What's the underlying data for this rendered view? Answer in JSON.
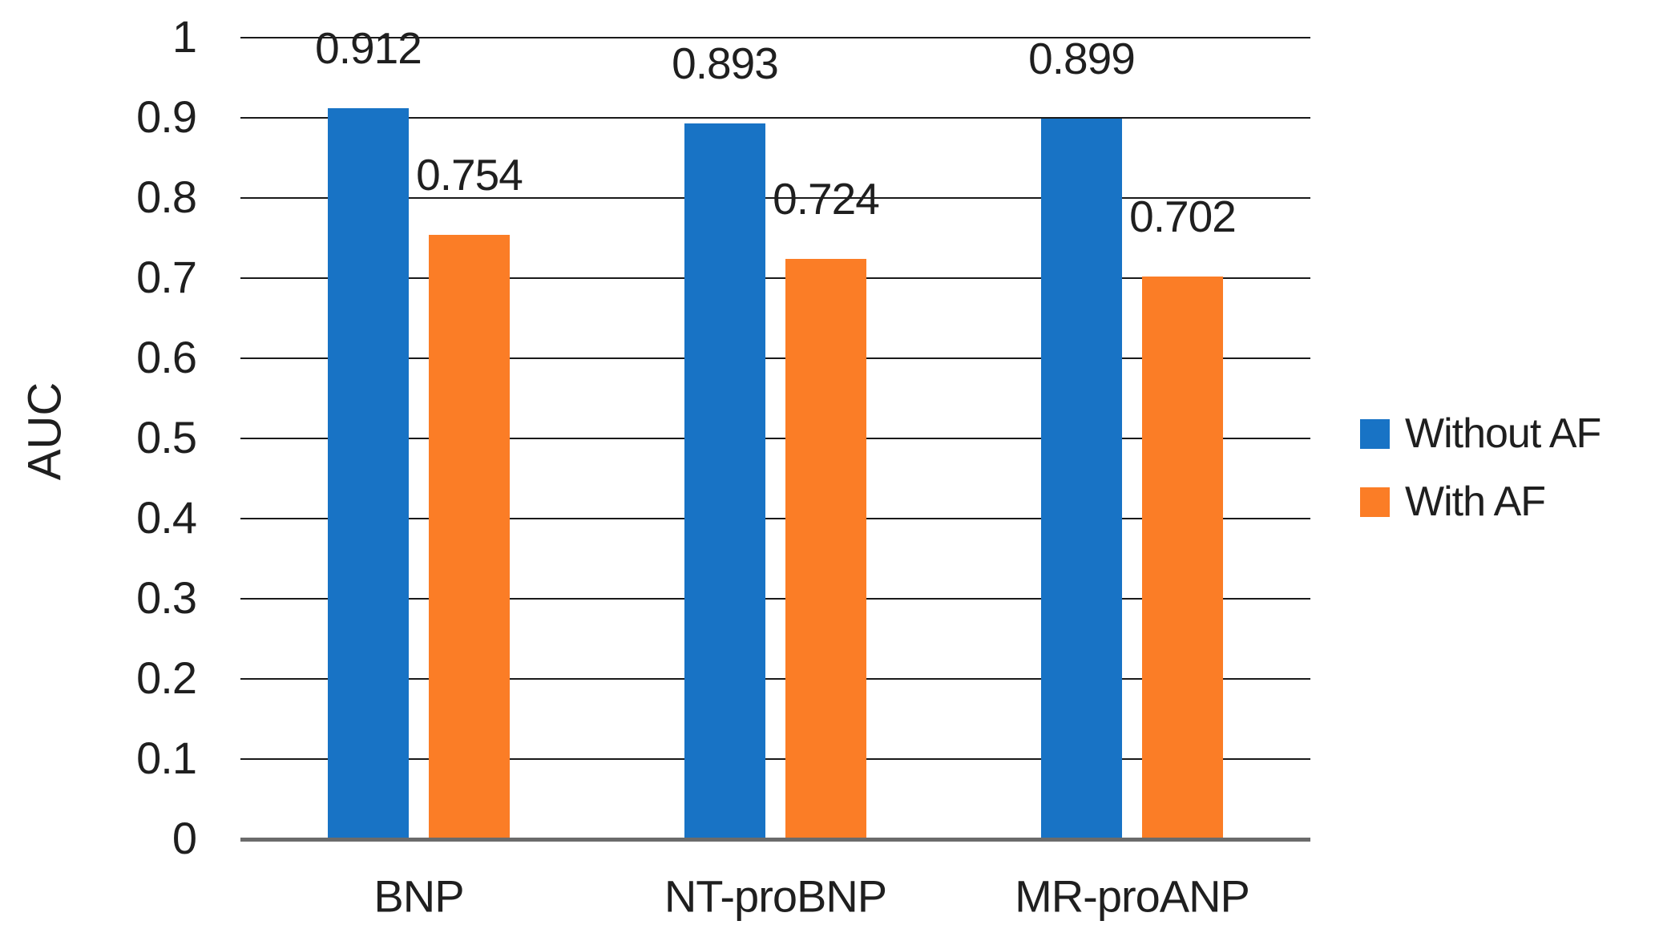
{
  "chart_data": {
    "type": "bar",
    "title": "",
    "categories": [
      "BNP",
      "NT-proBNP",
      "MR-proANP"
    ],
    "series": [
      {
        "name": "Without AF",
        "color": "#1873C5",
        "values": [
          0.912,
          0.893,
          0.899
        ]
      },
      {
        "name": "With AF",
        "color": "#FB7D26",
        "values": [
          0.754,
          0.724,
          0.702
        ]
      }
    ],
    "data_labels": {
      "Without AF": [
        "0.912",
        "0.893",
        "0.899"
      ],
      "With AF": [
        "0.754",
        "0.724",
        "0.702"
      ]
    },
    "xlabel": "",
    "ylabel": "AUC",
    "ylim": [
      0,
      1
    ],
    "ytick_step": 0.1,
    "ytick_labels": [
      "0",
      "0.1",
      "0.2",
      "0.3",
      "0.4",
      "0.5",
      "0.6",
      "0.7",
      "0.8",
      "0.9",
      "1"
    ],
    "grid": true,
    "legend_position": "right",
    "colors": {
      "without_af": "#1873C5",
      "with_af": "#FB7D26",
      "gridline": "#1a1a1a",
      "axis_line": "#6b6b6b",
      "text": "#1f1f1f",
      "background": "#ffffff"
    }
  }
}
